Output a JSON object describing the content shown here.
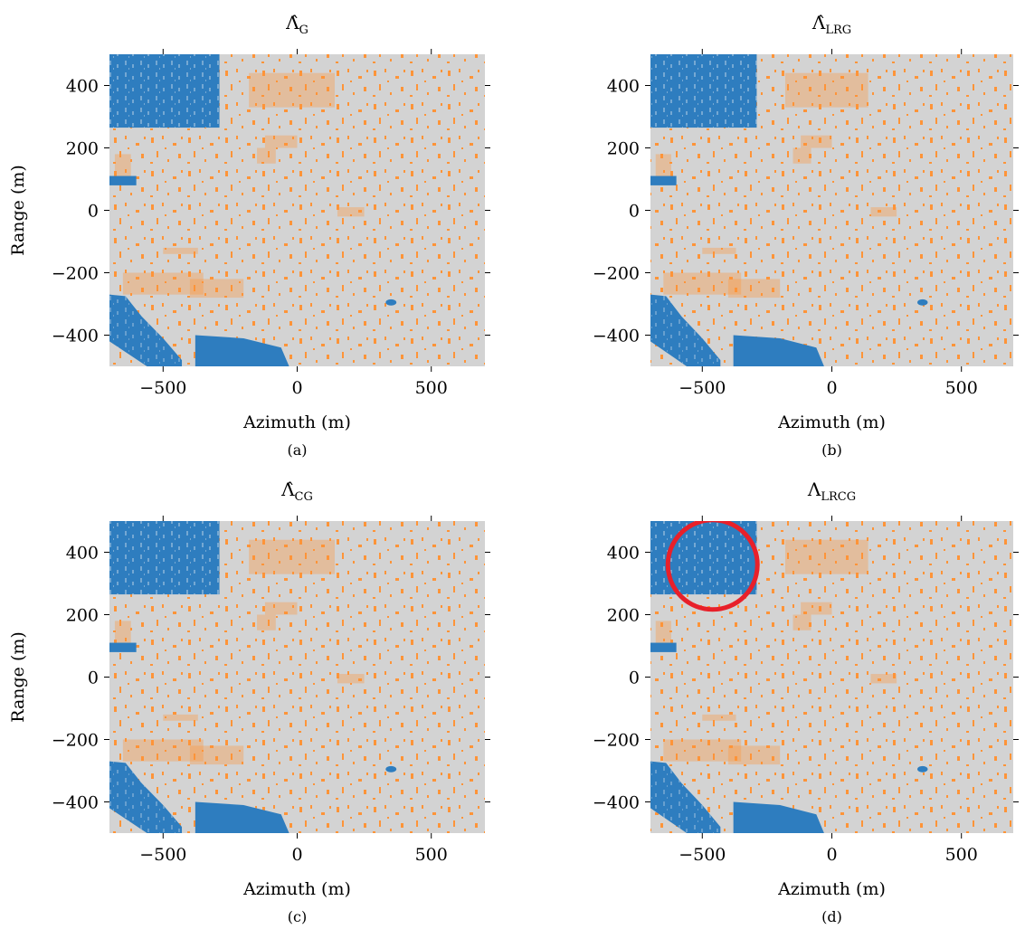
{
  "figure": {
    "panels": [
      {
        "id": "a",
        "title_main": "Λ̂",
        "title_sub": "G",
        "caption": "(a)",
        "show_ylabel": true
      },
      {
        "id": "b",
        "title_main": "Λ̂",
        "title_sub": "LRG",
        "caption": "(b)",
        "show_ylabel": false
      },
      {
        "id": "c",
        "title_main": "Λ̂",
        "title_sub": "CG",
        "caption": "(c)",
        "show_ylabel": true
      },
      {
        "id": "d",
        "title_main": "Λ",
        "title_sub": "LRCG",
        "caption": "(d)",
        "show_ylabel": false,
        "annotation": "red-circle"
      }
    ],
    "xlabel": "Azimuth (m)",
    "ylabel": "Range (m)"
  },
  "chart_data": {
    "type": "heatmap",
    "description_classes": [
      "gray",
      "orange",
      "blue"
    ],
    "colors": {
      "background": "#d3d3d3",
      "class_orange": "#ff9438",
      "class_blue": "#2e7dbf",
      "annotation": "#e8202a"
    },
    "x": {
      "label": "Azimuth (m)",
      "range": [
        -700,
        700
      ],
      "ticks": [
        -500,
        0,
        500
      ],
      "tick_labels": [
        "−500",
        "0",
        "500"
      ]
    },
    "y": {
      "label": "Range (m)",
      "range": [
        -500,
        500
      ],
      "ticks": [
        -400,
        -200,
        0,
        200,
        400
      ],
      "tick_labels": [
        "−400",
        "−200",
        "0",
        "200",
        "400"
      ]
    },
    "blue_regions": [
      {
        "name": "top-left-block",
        "azimuth": [
          -700,
          -290
        ],
        "range": [
          265,
          500
        ]
      },
      {
        "name": "left-strip",
        "azimuth": [
          -700,
          -600
        ],
        "range": [
          80,
          110
        ]
      },
      {
        "name": "bottom-left-diagonal",
        "azimuth": [
          -700,
          -430
        ],
        "range": [
          -500,
          -270
        ]
      },
      {
        "name": "bottom-lake",
        "azimuth": [
          -380,
          -30
        ],
        "range": [
          -500,
          -400
        ]
      },
      {
        "name": "small-target",
        "azimuth": [
          330,
          370
        ],
        "range": [
          -305,
          -285
        ]
      }
    ],
    "annotation_panel_d": {
      "type": "circle",
      "center": [
        -460,
        360
      ],
      "radius_azimuth": 240
    }
  }
}
